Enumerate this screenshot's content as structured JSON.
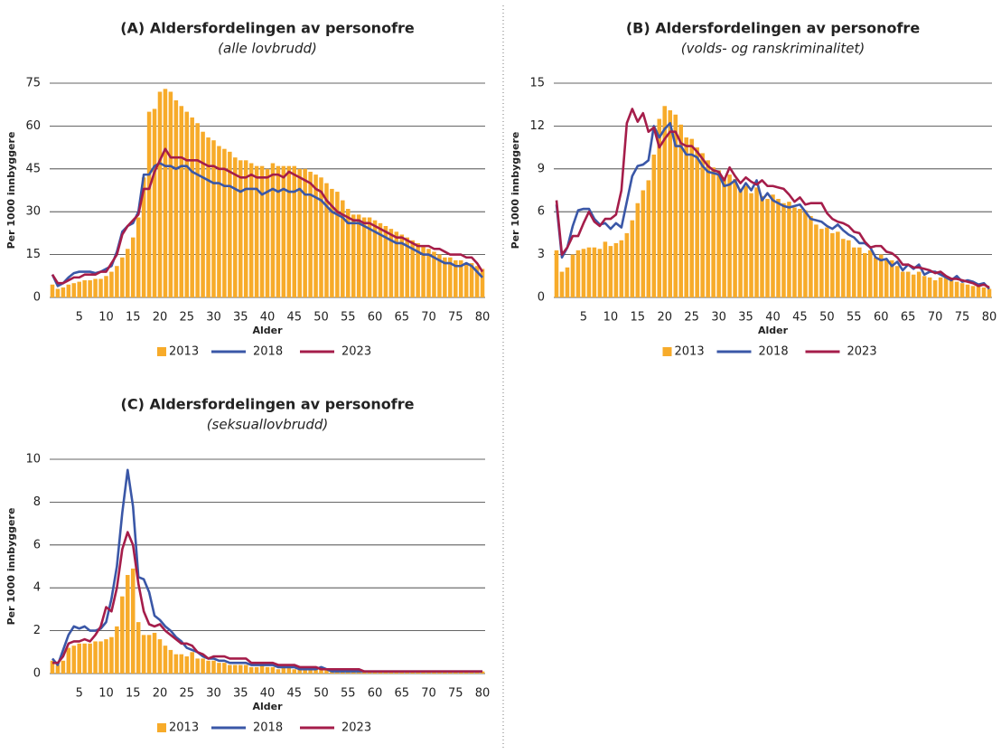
{
  "chart_data": [
    {
      "type": "combo",
      "title": "(A) Aldersfordelingen av personofre",
      "subtitle": "(alle lovbrudd)",
      "x_label": "Alder",
      "y_label": "Per 1000 innbyggere",
      "x": [
        0,
        1,
        2,
        3,
        4,
        5,
        6,
        7,
        8,
        9,
        10,
        11,
        12,
        13,
        14,
        15,
        16,
        17,
        18,
        19,
        20,
        21,
        22,
        23,
        24,
        25,
        26,
        27,
        28,
        29,
        30,
        31,
        32,
        33,
        34,
        35,
        36,
        37,
        38,
        39,
        40,
        41,
        42,
        43,
        44,
        45,
        46,
        47,
        48,
        49,
        50,
        51,
        52,
        53,
        54,
        55,
        56,
        57,
        58,
        59,
        60,
        61,
        62,
        63,
        64,
        65,
        66,
        67,
        68,
        69,
        70,
        71,
        72,
        73,
        74,
        75,
        76,
        77,
        78,
        79,
        80
      ],
      "xlim": [
        -0.5,
        80.5
      ],
      "xticks": [
        5,
        10,
        15,
        20,
        25,
        30,
        35,
        40,
        45,
        50,
        55,
        60,
        65,
        70,
        75,
        80
      ],
      "ylim": [
        0,
        75
      ],
      "yticks": [
        0,
        15,
        30,
        45,
        60,
        75
      ],
      "grid": true,
      "series": [
        {
          "name": "2013",
          "type": "bar",
          "color": "#f7ab2a",
          "values": [
            4.5,
            3,
            3.5,
            4.5,
            5,
            5.5,
            6,
            6,
            6.5,
            6.5,
            7.5,
            9,
            11,
            14,
            17,
            21,
            28,
            42,
            65,
            66,
            72,
            73,
            72,
            69,
            67,
            65,
            63,
            61,
            58,
            56,
            55,
            53,
            52,
            51,
            49,
            48,
            48,
            47,
            46,
            46,
            45,
            47,
            46,
            46,
            46,
            46,
            45,
            45,
            44,
            43,
            42,
            40,
            38,
            37,
            34,
            31,
            29,
            29,
            28,
            28,
            27,
            26,
            25,
            24,
            23,
            22,
            21,
            20,
            19,
            18,
            17,
            16,
            15,
            14,
            14,
            13,
            13,
            12,
            12,
            11,
            10
          ]
        },
        {
          "name": "2018",
          "type": "line",
          "color": "#3a57a7",
          "values": [
            8,
            4,
            5,
            7,
            8.5,
            9,
            9,
            9,
            8.5,
            9,
            10,
            11,
            16,
            23,
            25,
            26,
            30,
            43,
            43,
            46,
            47,
            46,
            46,
            45,
            46,
            46,
            44,
            43,
            42,
            41,
            40,
            40,
            39,
            39,
            38,
            37,
            38,
            38,
            38,
            36,
            37,
            38,
            37,
            38,
            37,
            37,
            38,
            36,
            36,
            35,
            34,
            32,
            30,
            29,
            28,
            26,
            26,
            26,
            25,
            24,
            23,
            22,
            21,
            20,
            19,
            19,
            18,
            17,
            16,
            15,
            15,
            14,
            13,
            12,
            12,
            11,
            11,
            12,
            11,
            9,
            7
          ]
        },
        {
          "name": "2023",
          "type": "line",
          "color": "#a51d4a",
          "values": [
            8,
            5,
            5,
            6,
            7,
            7,
            8,
            8,
            8,
            9,
            9,
            12,
            15,
            22,
            25,
            27,
            29,
            38,
            38,
            44,
            48,
            52,
            49,
            49,
            49,
            48,
            48,
            48,
            47,
            46,
            46,
            45,
            45,
            44,
            43,
            42,
            42,
            43,
            42,
            42,
            42,
            43,
            43,
            42,
            44,
            43,
            42,
            41,
            40,
            38,
            37,
            34,
            32,
            30,
            29,
            28,
            27,
            27,
            26,
            26,
            25,
            24,
            23,
            22,
            21,
            21,
            20,
            19,
            18,
            18,
            18,
            17,
            17,
            16,
            15,
            15,
            15,
            14,
            14,
            12,
            9
          ]
        }
      ]
    },
    {
      "type": "combo",
      "title": "(B) Aldersfordelingen av personofre",
      "subtitle": "(volds- og ranskriminalitet)",
      "x_label": "Alder",
      "y_label": "Per 1000 innbyggere",
      "x": [
        0,
        1,
        2,
        3,
        4,
        5,
        6,
        7,
        8,
        9,
        10,
        11,
        12,
        13,
        14,
        15,
        16,
        17,
        18,
        19,
        20,
        21,
        22,
        23,
        24,
        25,
        26,
        27,
        28,
        29,
        30,
        31,
        32,
        33,
        34,
        35,
        36,
        37,
        38,
        39,
        40,
        41,
        42,
        43,
        44,
        45,
        46,
        47,
        48,
        49,
        50,
        51,
        52,
        53,
        54,
        55,
        56,
        57,
        58,
        59,
        60,
        61,
        62,
        63,
        64,
        65,
        66,
        67,
        68,
        69,
        70,
        71,
        72,
        73,
        74,
        75,
        76,
        77,
        78,
        79,
        80
      ],
      "xlim": [
        -0.5,
        80.5
      ],
      "xticks": [
        5,
        10,
        15,
        20,
        25,
        30,
        35,
        40,
        45,
        50,
        55,
        60,
        65,
        70,
        75,
        80
      ],
      "ylim": [
        0,
        15
      ],
      "yticks": [
        0,
        3,
        6,
        9,
        12,
        15
      ],
      "grid": true,
      "series": [
        {
          "name": "2013",
          "type": "bar",
          "color": "#f7ab2a",
          "values": [
            3.3,
            1.8,
            2.1,
            3,
            3.3,
            3.4,
            3.5,
            3.5,
            3.4,
            3.9,
            3.6,
            3.8,
            4,
            4.5,
            5.4,
            6.6,
            7.5,
            8.2,
            10,
            12.5,
            13.4,
            13.1,
            12.8,
            12.1,
            11.2,
            11.1,
            10.5,
            10.1,
            9.6,
            9.1,
            8.9,
            8.4,
            8.6,
            8.3,
            7.6,
            7.8,
            7.3,
            7.7,
            7.1,
            6.9,
            7.2,
            6.9,
            6.6,
            6.7,
            6.3,
            6.2,
            6.1,
            5.7,
            5.1,
            4.8,
            4.9,
            4.5,
            4.6,
            4.1,
            4,
            3.5,
            3.5,
            3.1,
            3.3,
            2.8,
            3,
            2.6,
            2.6,
            2.2,
            1.8,
            1.8,
            1.6,
            1.8,
            1.5,
            1.4,
            1.2,
            1.4,
            1.4,
            1.2,
            1.1,
            1,
            0.9,
            0.8,
            0.8,
            0.7,
            0.6
          ]
        },
        {
          "name": "2018",
          "type": "line",
          "color": "#3a57a7",
          "values": [
            6.5,
            2.8,
            3.5,
            5,
            6.1,
            6.2,
            6.2,
            5.5,
            5.1,
            5.2,
            4.8,
            5.2,
            4.9,
            6.7,
            8.5,
            9.2,
            9.3,
            9.6,
            12,
            11.2,
            11.8,
            12.2,
            10.6,
            10.6,
            10,
            10,
            9.8,
            9.2,
            8.8,
            8.7,
            8.6,
            7.8,
            7.9,
            8.2,
            7.4,
            8,
            7.5,
            8.2,
            6.8,
            7.3,
            6.8,
            6.6,
            6.4,
            6.3,
            6.4,
            6.5,
            6,
            5.5,
            5.4,
            5.3,
            5,
            4.8,
            5.1,
            4.7,
            4.4,
            4.2,
            3.8,
            3.8,
            3.5,
            2.8,
            2.6,
            2.7,
            2.2,
            2.5,
            1.9,
            2.3,
            2,
            2.3,
            1.6,
            1.8,
            1.8,
            1.6,
            1.4,
            1.2,
            1.5,
            1.1,
            1.2,
            1.1,
            0.9,
            1,
            0.6
          ]
        },
        {
          "name": "2023",
          "type": "line",
          "color": "#a51d4a",
          "values": [
            6.8,
            3,
            3.5,
            4.3,
            4.3,
            5.2,
            6,
            5.3,
            5,
            5.5,
            5.5,
            5.8,
            7.5,
            12.2,
            13.2,
            12.3,
            12.9,
            11.6,
            11.9,
            10.5,
            11.1,
            11.6,
            11.6,
            10.8,
            10.6,
            10.6,
            10.2,
            9.7,
            9.2,
            8.9,
            8.8,
            8.2,
            9.1,
            8.5,
            8,
            8.4,
            8.1,
            7.9,
            8.2,
            7.8,
            7.8,
            7.7,
            7.6,
            7.2,
            6.7,
            7,
            6.5,
            6.6,
            6.6,
            6.6,
            5.9,
            5.5,
            5.3,
            5.2,
            5,
            4.6,
            4.5,
            3.9,
            3.5,
            3.6,
            3.6,
            3.2,
            3.1,
            2.8,
            2.3,
            2.3,
            2.1,
            2.1,
            2,
            1.9,
            1.7,
            1.8,
            1.5,
            1.3,
            1.3,
            1.2,
            1.1,
            1,
            0.8,
            0.9,
            0.7
          ]
        }
      ]
    },
    {
      "type": "combo",
      "title": "(C) Aldersfordelingen av personofre",
      "subtitle": "(seksuallovbrudd)",
      "x_label": "Alder",
      "y_label": "Per 1000 innbyggere",
      "x": [
        0,
        1,
        2,
        3,
        4,
        5,
        6,
        7,
        8,
        9,
        10,
        11,
        12,
        13,
        14,
        15,
        16,
        17,
        18,
        19,
        20,
        21,
        22,
        23,
        24,
        25,
        26,
        27,
        28,
        29,
        30,
        31,
        32,
        33,
        34,
        35,
        36,
        37,
        38,
        39,
        40,
        41,
        42,
        43,
        44,
        45,
        46,
        47,
        48,
        49,
        50,
        51,
        52,
        53,
        54,
        55,
        56,
        57,
        58,
        59,
        60,
        61,
        62,
        63,
        64,
        65,
        66,
        67,
        68,
        69,
        70,
        71,
        72,
        73,
        74,
        75,
        76,
        77,
        78,
        79,
        80
      ],
      "xlim": [
        -0.5,
        80.5
      ],
      "xticks": [
        5,
        10,
        15,
        20,
        25,
        30,
        35,
        40,
        45,
        50,
        55,
        60,
        65,
        70,
        75,
        80
      ],
      "ylim": [
        0,
        10
      ],
      "yticks": [
        0,
        2,
        4,
        6,
        8,
        10
      ],
      "grid": true,
      "series": [
        {
          "name": "2013",
          "type": "bar",
          "color": "#f7ab2a",
          "values": [
            0.6,
            0.4,
            0.6,
            1.2,
            1.3,
            1.4,
            1.4,
            1.4,
            1.5,
            1.5,
            1.6,
            1.7,
            2.2,
            3.6,
            4.6,
            4.9,
            2.4,
            1.8,
            1.8,
            1.9,
            1.6,
            1.3,
            1.1,
            0.9,
            0.9,
            0.8,
            1,
            0.7,
            0.7,
            0.6,
            0.6,
            0.5,
            0.5,
            0.4,
            0.4,
            0.4,
            0.4,
            0.3,
            0.3,
            0.4,
            0.3,
            0.3,
            0.2,
            0.3,
            0.3,
            0.2,
            0.2,
            0.3,
            0.2,
            0.2,
            0.3,
            0.2,
            0.2,
            0.1,
            0.2,
            0.1,
            0.1,
            0.1,
            0.1,
            0.1,
            0.1,
            0.1,
            0.1,
            0.1,
            0.1,
            0.1,
            0.1,
            0.1,
            0.1,
            0.1,
            0.1,
            0.1,
            0.1,
            0.1,
            0.1,
            0.1,
            0.1,
            0.1,
            0.1,
            0.1,
            0.1
          ]
        },
        {
          "name": "2018",
          "type": "line",
          "color": "#3a57a7",
          "values": [
            0.7,
            0.4,
            1.1,
            1.8,
            2.2,
            2.1,
            2.2,
            2,
            2,
            2.1,
            2.4,
            3.5,
            5,
            7.5,
            9.5,
            7.8,
            4.5,
            4.4,
            3.8,
            2.7,
            2.5,
            2.2,
            2,
            1.7,
            1.5,
            1.2,
            1.1,
            1,
            0.8,
            0.7,
            0.7,
            0.6,
            0.6,
            0.5,
            0.5,
            0.5,
            0.5,
            0.4,
            0.4,
            0.4,
            0.4,
            0.4,
            0.3,
            0.3,
            0.3,
            0.3,
            0.2,
            0.2,
            0.2,
            0.2,
            0.3,
            0.2,
            0.1,
            0.1,
            0.1,
            0.1,
            0.1,
            0.1,
            0.1,
            0.1,
            0.1,
            0.1,
            0.1,
            0.1,
            0.1,
            0.1,
            0.1,
            0.1,
            0.1,
            0.1,
            0.1,
            0.1,
            0.1,
            0.1,
            0.1,
            0.1,
            0.1,
            0.1,
            0.1,
            0.1,
            0.1
          ]
        },
        {
          "name": "2023",
          "type": "line",
          "color": "#a51d4a",
          "values": [
            0.5,
            0.5,
            0.8,
            1.4,
            1.5,
            1.5,
            1.6,
            1.5,
            1.8,
            2.2,
            3.1,
            2.9,
            4,
            5.8,
            6.6,
            6,
            4.2,
            2.9,
            2.3,
            2.2,
            2.3,
            2,
            1.8,
            1.6,
            1.4,
            1.4,
            1.3,
            1,
            0.9,
            0.7,
            0.8,
            0.8,
            0.8,
            0.7,
            0.7,
            0.7,
            0.7,
            0.5,
            0.5,
            0.5,
            0.5,
            0.5,
            0.4,
            0.4,
            0.4,
            0.4,
            0.3,
            0.3,
            0.3,
            0.3,
            0.2,
            0.2,
            0.2,
            0.2,
            0.2,
            0.2,
            0.2,
            0.2,
            0.1,
            0.1,
            0.1,
            0.1,
            0.1,
            0.1,
            0.1,
            0.1,
            0.1,
            0.1,
            0.1,
            0.1,
            0.1,
            0.1,
            0.1,
            0.1,
            0.1,
            0.1,
            0.1,
            0.1,
            0.1,
            0.1,
            0.1
          ]
        }
      ]
    }
  ]
}
